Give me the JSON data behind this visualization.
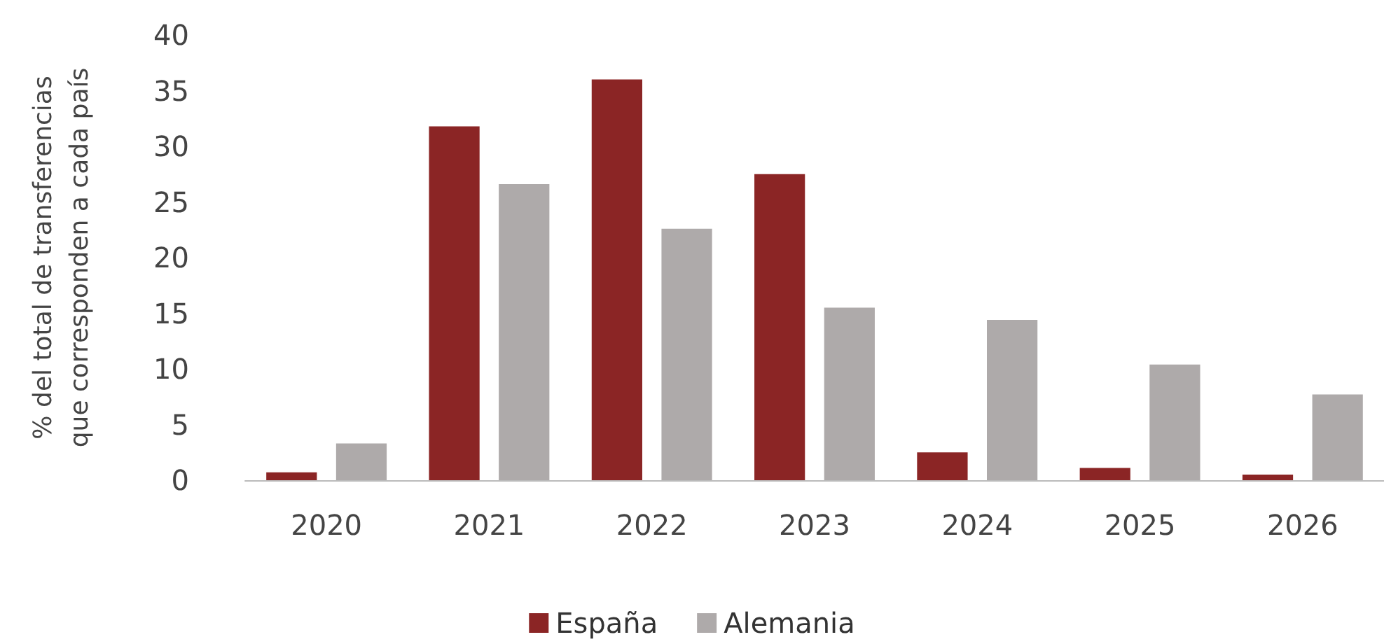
{
  "chart_data": {
    "type": "bar",
    "ylabel": "% del total de transferencias que corresponden a cada país",
    "categories": [
      "2020",
      "2021",
      "2022",
      "2023",
      "2024",
      "2025",
      "2026"
    ],
    "series": [
      {
        "name": "España",
        "color": "#8b2525",
        "values": [
          0.7,
          31.8,
          36,
          27.5,
          2.5,
          1.1,
          0.5
        ]
      },
      {
        "name": "Alemania",
        "color": "#aeaaaa",
        "values": [
          3.3,
          26.6,
          22.6,
          15.5,
          14.4,
          10.4,
          7.7
        ]
      }
    ],
    "ylim": [
      0,
      40
    ],
    "yticks": [
      0,
      5,
      10,
      15,
      20,
      25,
      30,
      35,
      40
    ],
    "grid": false,
    "legend": "bottom"
  }
}
